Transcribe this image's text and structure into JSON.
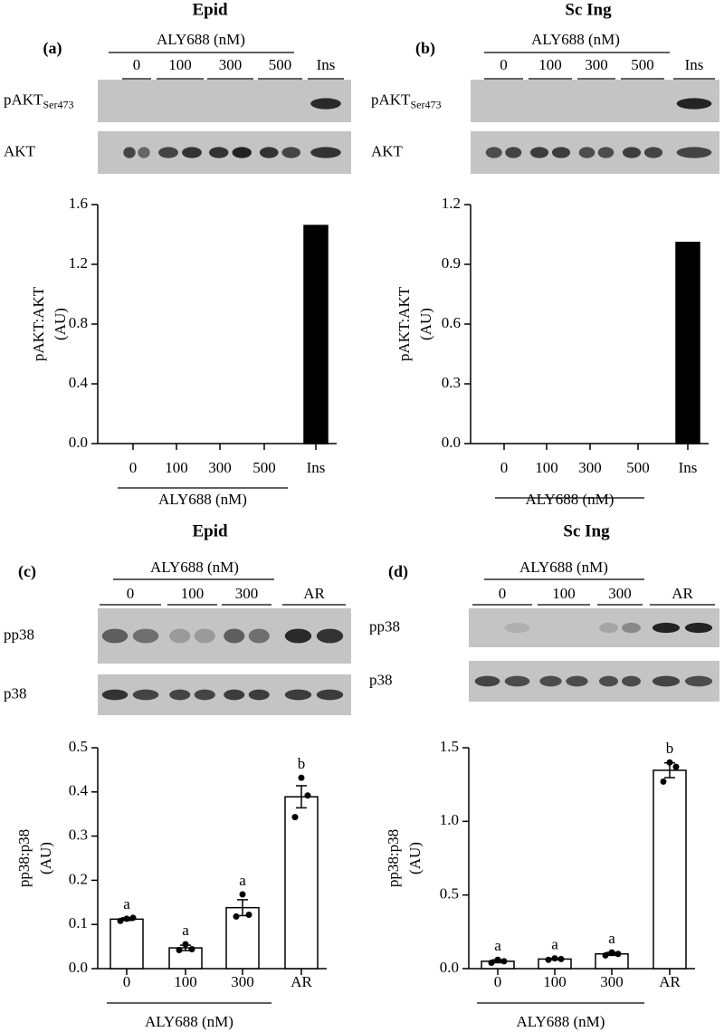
{
  "chart_data": [
    {
      "type": "bar",
      "panel": "(a)",
      "title": "Epid",
      "blot": {
        "header": "ALY688 (nM)",
        "lanes": [
          "0",
          "100",
          "300",
          "500",
          "Ins"
        ],
        "rows": [
          {
            "label": "pAKT",
            "sub": "Ser473"
          },
          {
            "label": "AKT"
          }
        ]
      },
      "categories": [
        "0",
        "100",
        "300",
        "500",
        "Ins"
      ],
      "values": [
        0,
        0,
        0,
        0,
        1.46
      ],
      "color": "#000000",
      "ylabel": [
        "pAKT:AKT",
        "(AU)"
      ],
      "xlabel": "ALY688 (nM)",
      "ylim": [
        0,
        1.6
      ],
      "yticks": [
        {
          "value": 0,
          "label": "0.0"
        },
        0.4,
        0.8,
        1.2,
        1.6
      ]
    },
    {
      "type": "bar",
      "panel": "(b)",
      "title": "Sc Ing",
      "blot": {
        "header": "ALY688 (nM)",
        "lanes": [
          "0",
          "100",
          "300",
          "500",
          "Ins"
        ],
        "rows": [
          {
            "label": "pAKT",
            "sub": "Ser473"
          },
          {
            "label": "AKT"
          }
        ]
      },
      "categories": [
        "0",
        "100",
        "300",
        "500",
        "Ins"
      ],
      "values": [
        0,
        0,
        0,
        0,
        1.01
      ],
      "color": "#000000",
      "ylabel": [
        "pAKT:AKT",
        "(AU)"
      ],
      "xlabel": "ALY688 (nM)",
      "ylim": [
        0,
        1.2
      ],
      "yticks": [
        {
          "value": 0,
          "label": "0.0"
        },
        0.3,
        0.6,
        0.9,
        1.2
      ]
    },
    {
      "type": "bar",
      "panel": "(c)",
      "title": "Epid",
      "blot": {
        "header": "ALY688 (nM)",
        "lanes": [
          "0",
          "100",
          "300",
          "AR"
        ],
        "rows": [
          {
            "label": "pp38"
          },
          {
            "label": "p38"
          }
        ]
      },
      "categories": [
        "0",
        "100",
        "300",
        "AR"
      ],
      "values": [
        0.112,
        0.047,
        0.138,
        0.389
      ],
      "errors": [
        0.003,
        0.006,
        0.018,
        0.025
      ],
      "points": [
        [
          0.108,
          0.113,
          0.115
        ],
        [
          0.042,
          0.055,
          0.044
        ],
        [
          0.118,
          0.168,
          0.122
        ],
        [
          0.343,
          0.432,
          0.392
        ]
      ],
      "annotations": [
        "a",
        "a",
        "a",
        "b"
      ],
      "color": "#ffffff",
      "ylabel": [
        "pp38:p38",
        "(AU)"
      ],
      "xlabel": "ALY688 (nM)",
      "ylim": [
        0,
        0.5
      ],
      "yticks": [
        {
          "value": 0,
          "label": "0.0"
        },
        0.1,
        0.2,
        0.3,
        0.4,
        0.5
      ]
    },
    {
      "type": "bar",
      "panel": "(d)",
      "title": "Sc Ing",
      "blot": {
        "header": "ALY688 (nM)",
        "lanes": [
          "0",
          "100",
          "300",
          "AR"
        ],
        "rows": [
          {
            "label": "pp38"
          },
          {
            "label": "p38"
          }
        ]
      },
      "categories": [
        "0",
        "100",
        "300",
        "AR"
      ],
      "values": [
        0.05,
        0.065,
        0.1,
        1.347
      ],
      "errors": [
        0.01,
        0.005,
        0.01,
        0.05
      ],
      "points": [
        [
          0.04,
          0.06,
          0.05
        ],
        [
          0.06,
          0.07,
          0.065
        ],
        [
          0.09,
          0.11,
          0.1
        ],
        [
          1.27,
          1.4,
          1.37
        ]
      ],
      "annotations": [
        "a",
        "a",
        "a",
        "b"
      ],
      "color": "#ffffff",
      "ylabel": [
        "pp38:p38",
        "(AU)"
      ],
      "xlabel": "ALY688 (nM)",
      "ylim": [
        0,
        1.5
      ],
      "yticks": [
        {
          "value": 0,
          "label": "0.0"
        },
        0.5,
        {
          "value": 1,
          "label": "1.0"
        },
        1.5
      ]
    }
  ]
}
